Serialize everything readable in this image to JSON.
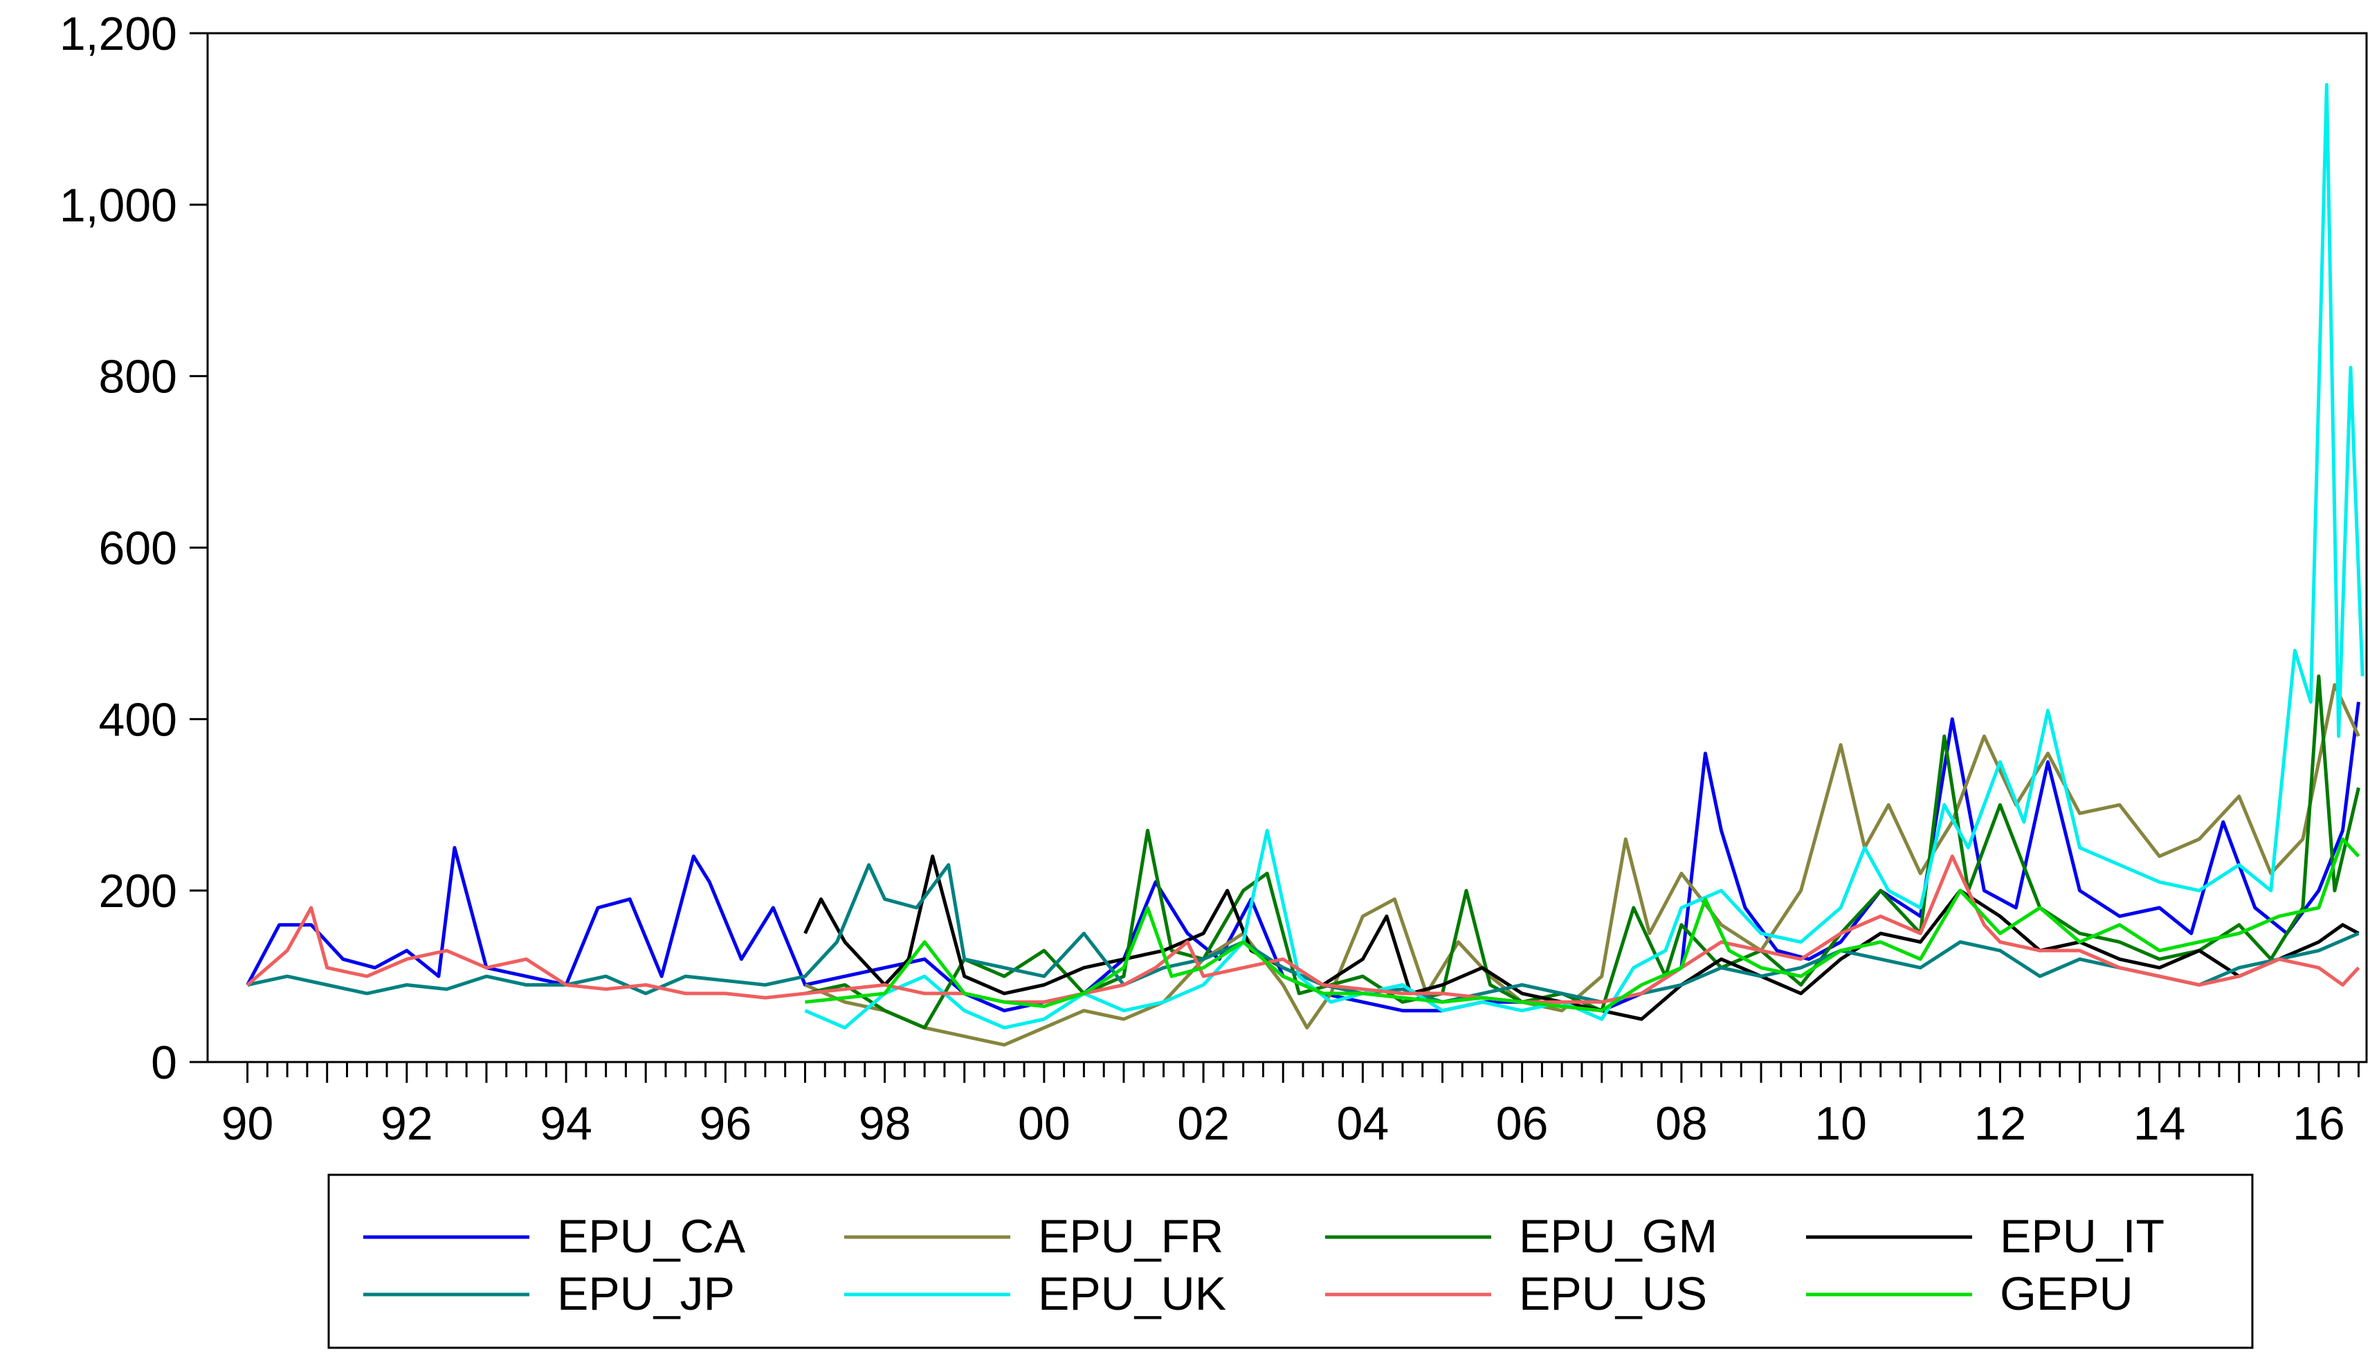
{
  "chart_data": {
    "type": "line",
    "title": "",
    "xlabel": "",
    "ylabel": "",
    "xlim": [
      1989.5,
      2016.6
    ],
    "ylim": [
      0,
      1200
    ],
    "y_ticks": [
      0,
      200,
      400,
      600,
      800,
      1000,
      1200
    ],
    "y_tick_labels": [
      "0",
      "200",
      "400",
      "600",
      "800",
      "1,000",
      "1,200"
    ],
    "x_ticks": [
      1990,
      1992,
      1994,
      1996,
      1998,
      2000,
      2002,
      2004,
      2006,
      2008,
      2010,
      2012,
      2014,
      2016
    ],
    "x_tick_labels": [
      "90",
      "92",
      "94",
      "96",
      "98",
      "00",
      "02",
      "04",
      "06",
      "08",
      "10",
      "12",
      "14",
      "16"
    ],
    "grid": false,
    "legend_position": "bottom",
    "series": [
      {
        "name": "EPU_CA",
        "color": "#0000ee",
        "x": [
          1990.0,
          1990.4,
          1990.8,
          1991.2,
          1991.6,
          1992.0,
          1992.4,
          1992.6,
          1993.0,
          1993.5,
          1994.0,
          1994.4,
          1994.8,
          1995.2,
          1995.6,
          1995.8,
          1996.2,
          1996.6,
          1997.0,
          1997.5,
          1998.0,
          1998.5,
          1999.0,
          1999.5,
          2000.0,
          2000.5,
          2001.0,
          2001.4,
          2001.8,
          2002.2,
          2002.6,
          2003.0,
          2003.5,
          2004.0,
          2004.5,
          2005.0,
          2005.5,
          2006.0,
          2006.5,
          2007.0,
          2007.5,
          2008.0,
          2008.3,
          2008.5,
          2008.8,
          2009.2,
          2009.6,
          2010.0,
          2010.5,
          2011.0,
          2011.4,
          2011.8,
          2012.2,
          2012.6,
          2013.0,
          2013.5,
          2014.0,
          2014.4,
          2014.8,
          2015.2,
          2015.6,
          2016.0,
          2016.3,
          2016.5
        ],
        "values": [
          90,
          160,
          160,
          120,
          110,
          130,
          100,
          250,
          110,
          100,
          90,
          180,
          190,
          100,
          240,
          210,
          120,
          180,
          90,
          100,
          110,
          120,
          80,
          60,
          70,
          80,
          120,
          210,
          150,
          120,
          190,
          100,
          80,
          70,
          60,
          60,
          70,
          70,
          65,
          60,
          80,
          110,
          360,
          270,
          180,
          130,
          120,
          140,
          200,
          170,
          400,
          200,
          180,
          350,
          200,
          170,
          180,
          150,
          280,
          180,
          150,
          200,
          270,
          420
        ]
      },
      {
        "name": "EPU_FR",
        "color": "#86853f",
        "x": [
          1997.0,
          1997.5,
          1998.0,
          1998.5,
          1999.0,
          1999.5,
          2000.0,
          2000.5,
          2001.0,
          2001.5,
          2002.0,
          2002.5,
          2003.0,
          2003.3,
          2003.6,
          2004.0,
          2004.4,
          2004.8,
          2005.2,
          2005.6,
          2006.0,
          2006.5,
          2007.0,
          2007.3,
          2007.6,
          2008.0,
          2008.5,
          2009.0,
          2009.5,
          2010.0,
          2010.3,
          2010.6,
          2011.0,
          2011.4,
          2011.8,
          2012.2,
          2012.6,
          2013.0,
          2013.5,
          2014.0,
          2014.5,
          2015.0,
          2015.4,
          2015.8,
          2016.2,
          2016.5
        ],
        "values": [
          90,
          70,
          60,
          40,
          30,
          20,
          40,
          60,
          50,
          70,
          120,
          150,
          90,
          40,
          80,
          170,
          190,
          80,
          140,
          100,
          70,
          60,
          100,
          260,
          150,
          220,
          160,
          130,
          200,
          370,
          250,
          300,
          220,
          280,
          380,
          300,
          360,
          290,
          300,
          240,
          260,
          310,
          220,
          260,
          440,
          380
        ]
      },
      {
        "name": "EPU_GM",
        "color": "#007a00",
        "x": [
          1997.0,
          1997.5,
          1998.0,
          1998.5,
          1999.0,
          1999.5,
          2000.0,
          2000.5,
          2001.0,
          2001.3,
          2001.6,
          2002.0,
          2002.5,
          2002.8,
          2003.2,
          2003.6,
          2004.0,
          2004.5,
          2005.0,
          2005.3,
          2005.6,
          2006.0,
          2006.5,
          2007.0,
          2007.4,
          2007.8,
          2008.0,
          2008.5,
          2009.0,
          2009.5,
          2010.0,
          2010.5,
          2011.0,
          2011.3,
          2011.6,
          2012.0,
          2012.5,
          2013.0,
          2013.5,
          2014.0,
          2014.5,
          2015.0,
          2015.4,
          2015.8,
          2016.0,
          2016.2,
          2016.5
        ],
        "values": [
          80,
          90,
          60,
          40,
          120,
          100,
          130,
          80,
          100,
          270,
          130,
          120,
          200,
          220,
          80,
          90,
          100,
          70,
          80,
          200,
          90,
          70,
          80,
          60,
          180,
          100,
          160,
          110,
          130,
          90,
          150,
          200,
          150,
          380,
          200,
          300,
          180,
          150,
          140,
          120,
          130,
          160,
          120,
          180,
          450,
          200,
          320
        ]
      },
      {
        "name": "EPU_IT",
        "color": "#000000",
        "x": [
          1997.0,
          1997.2,
          1997.5,
          1998.0,
          1998.3,
          1998.6,
          1999.0,
          1999.5,
          2000.0,
          2000.5,
          2001.0,
          2001.5,
          2002.0,
          2002.3,
          2002.6,
          2003.0,
          2003.5,
          2004.0,
          2004.3,
          2004.6,
          2005.0,
          2005.5,
          2006.0,
          2006.5,
          2007.0,
          2007.5,
          2008.0,
          2008.5,
          2009.0,
          2009.5,
          2010.0,
          2010.5,
          2011.0,
          2011.5,
          2012.0,
          2012.5,
          2013.0,
          2013.5,
          2014.0,
          2014.5,
          2015.0,
          2015.5,
          2016.0,
          2016.3,
          2016.5
        ],
        "values": [
          150,
          190,
          140,
          90,
          120,
          240,
          100,
          80,
          90,
          110,
          120,
          130,
          150,
          200,
          130,
          110,
          90,
          120,
          170,
          80,
          90,
          110,
          80,
          70,
          60,
          50,
          90,
          120,
          100,
          80,
          120,
          150,
          140,
          200,
          170,
          130,
          140,
          120,
          110,
          130,
          100,
          120,
          140,
          160,
          150
        ]
      },
      {
        "name": "EPU_JP",
        "color": "#008080",
        "x": [
          1990.0,
          1990.5,
          1991.0,
          1991.5,
          1992.0,
          1992.5,
          1993.0,
          1993.5,
          1994.0,
          1994.5,
          1995.0,
          1995.5,
          1996.0,
          1996.5,
          1997.0,
          1997.4,
          1997.8,
          1998.0,
          1998.4,
          1998.8,
          1999.0,
          1999.5,
          2000.0,
          2000.5,
          2001.0,
          2001.5,
          2002.0,
          2002.5,
          2003.0,
          2003.5,
          2004.0,
          2004.5,
          2005.0,
          2005.5,
          2006.0,
          2006.5,
          2007.0,
          2007.5,
          2008.0,
          2008.5,
          2009.0,
          2009.5,
          2010.0,
          2010.5,
          2011.0,
          2011.5,
          2012.0,
          2012.5,
          2013.0,
          2013.5,
          2014.0,
          2014.5,
          2015.0,
          2015.5,
          2016.0,
          2016.5
        ],
        "values": [
          90,
          100,
          90,
          80,
          90,
          85,
          100,
          90,
          90,
          100,
          80,
          100,
          95,
          90,
          100,
          140,
          230,
          190,
          180,
          230,
          120,
          110,
          100,
          150,
          90,
          110,
          120,
          140,
          110,
          90,
          80,
          85,
          70,
          80,
          90,
          80,
          70,
          80,
          90,
          110,
          100,
          110,
          130,
          120,
          110,
          140,
          130,
          100,
          120,
          110,
          100,
          90,
          110,
          120,
          130,
          150
        ]
      },
      {
        "name": "EPU_UK",
        "color": "#00eeee",
        "x": [
          1997.0,
          1997.5,
          1998.0,
          1998.5,
          1999.0,
          1999.5,
          2000.0,
          2000.5,
          2001.0,
          2001.5,
          2002.0,
          2002.5,
          2002.8,
          2003.2,
          2003.6,
          2004.0,
          2004.5,
          2005.0,
          2005.5,
          2006.0,
          2006.5,
          2007.0,
          2007.4,
          2007.8,
          2008.0,
          2008.5,
          2009.0,
          2009.5,
          2010.0,
          2010.3,
          2010.6,
          2011.0,
          2011.3,
          2011.6,
          2012.0,
          2012.3,
          2012.6,
          2013.0,
          2013.5,
          2014.0,
          2014.5,
          2015.0,
          2015.4,
          2015.7,
          2015.9,
          2016.1,
          2016.25,
          2016.4,
          2016.55
        ],
        "values": [
          60,
          40,
          80,
          100,
          60,
          40,
          50,
          80,
          60,
          70,
          90,
          140,
          270,
          100,
          70,
          80,
          90,
          60,
          70,
          60,
          70,
          50,
          110,
          130,
          180,
          200,
          150,
          140,
          180,
          250,
          200,
          180,
          300,
          250,
          350,
          280,
          410,
          250,
          230,
          210,
          200,
          230,
          200,
          480,
          420,
          1140,
          380,
          810,
          450
        ]
      },
      {
        "name": "EPU_US",
        "color": "#ef5f5f",
        "x": [
          1990.0,
          1990.5,
          1990.8,
          1991.0,
          1991.5,
          1992.0,
          1992.5,
          1993.0,
          1993.5,
          1994.0,
          1994.5,
          1995.0,
          1995.5,
          1996.0,
          1996.5,
          1997.0,
          1997.5,
          1998.0,
          1998.5,
          1999.0,
          1999.5,
          2000.0,
          2000.5,
          2001.0,
          2001.4,
          2001.8,
          2002.0,
          2002.5,
          2003.0,
          2003.5,
          2004.0,
          2004.5,
          2005.0,
          2005.5,
          2006.0,
          2006.5,
          2007.0,
          2007.5,
          2008.0,
          2008.5,
          2009.0,
          2009.5,
          2010.0,
          2010.5,
          2011.0,
          2011.4,
          2011.8,
          2012.0,
          2012.5,
          2013.0,
          2013.5,
          2014.0,
          2014.5,
          2015.0,
          2015.5,
          2016.0,
          2016.3,
          2016.5
        ],
        "values": [
          90,
          130,
          180,
          110,
          100,
          120,
          130,
          110,
          120,
          90,
          85,
          90,
          80,
          80,
          75,
          80,
          85,
          90,
          80,
          80,
          70,
          70,
          80,
          90,
          110,
          140,
          100,
          110,
          120,
          90,
          85,
          80,
          80,
          75,
          70,
          70,
          70,
          80,
          110,
          140,
          130,
          120,
          150,
          170,
          150,
          240,
          160,
          140,
          130,
          130,
          110,
          100,
          90,
          100,
          120,
          110,
          90,
          110
        ]
      },
      {
        "name": "GEPU",
        "color": "#00dd00",
        "x": [
          1997.0,
          1997.5,
          1998.0,
          1998.5,
          1999.0,
          1999.5,
          2000.0,
          2000.5,
          2001.0,
          2001.3,
          2001.6,
          2002.0,
          2002.5,
          2003.0,
          2003.5,
          2004.0,
          2004.5,
          2005.0,
          2005.5,
          2006.0,
          2006.5,
          2007.0,
          2007.5,
          2008.0,
          2008.3,
          2008.6,
          2009.0,
          2009.5,
          2010.0,
          2010.5,
          2011.0,
          2011.5,
          2012.0,
          2012.5,
          2013.0,
          2013.5,
          2014.0,
          2014.5,
          2015.0,
          2015.5,
          2016.0,
          2016.3,
          2016.5
        ],
        "values": [
          70,
          75,
          80,
          140,
          80,
          70,
          65,
          80,
          110,
          180,
          100,
          110,
          140,
          100,
          80,
          80,
          75,
          70,
          75,
          70,
          65,
          60,
          90,
          110,
          190,
          130,
          110,
          100,
          130,
          140,
          120,
          200,
          150,
          180,
          140,
          160,
          130,
          140,
          150,
          170,
          180,
          260,
          240
        ]
      }
    ]
  }
}
